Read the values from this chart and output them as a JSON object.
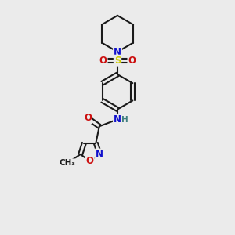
{
  "bg_color": "#ebebeb",
  "bond_color": "#1a1a1a",
  "bond_width": 1.5,
  "atom_colors": {
    "N": "#1010cc",
    "O": "#cc1010",
    "S": "#cccc00",
    "H": "#408080",
    "C": "#1a1a1a"
  },
  "font_size_atom": 8.5,
  "font_size_methyl": 7.5
}
